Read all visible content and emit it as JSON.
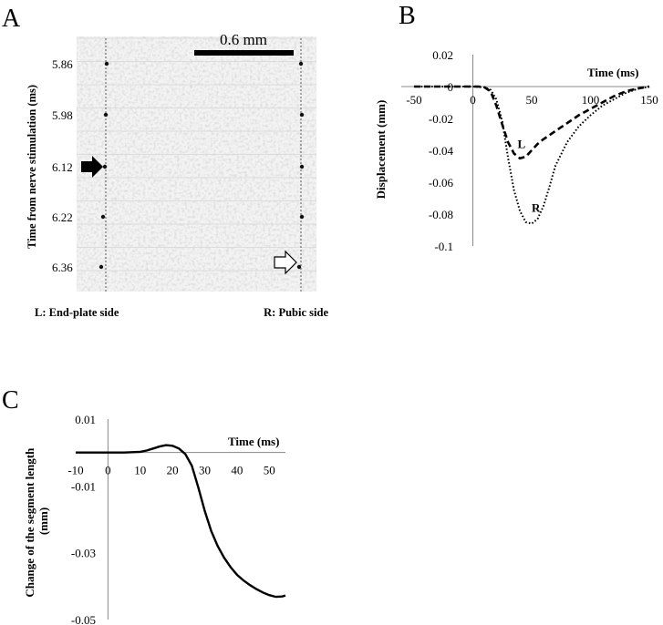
{
  "panels": {
    "a": {
      "letter": "A",
      "scale_bar_label": "0.6 mm",
      "y_title": "Time from nerve stimulation (ms)",
      "time_labels": [
        "5.86",
        "5.98",
        "6.12",
        "6.22",
        "6.36"
      ],
      "left_caption": "L: End-plate side",
      "right_caption": "R: Pubic side",
      "solid_arrow_frame": 2,
      "open_arrow_frame": 4
    },
    "b": {
      "letter": "B"
    },
    "c": {
      "letter": "C"
    }
  },
  "chart_data": [
    {
      "panel": "B",
      "type": "line",
      "title": "",
      "xlabel": "Time (ms)",
      "ylabel": "Displacement (mm)",
      "xlim": [
        -50,
        150
      ],
      "ylim": [
        -0.1,
        0.02
      ],
      "xticks": [
        -50,
        0,
        50,
        100,
        150
      ],
      "yticks": [
        0.02,
        0,
        -0.02,
        -0.04,
        -0.06,
        -0.08,
        -0.1
      ],
      "xtick_labels": [
        "-50",
        "0",
        "50",
        "100",
        "150"
      ],
      "ytick_labels": [
        "0.02",
        "0",
        "-0.02",
        "-0.04",
        "-0.06",
        "-0.08",
        "-0.1"
      ],
      "grid": false,
      "series": [
        {
          "name": "L",
          "style": "dashed",
          "x": [
            -50,
            -20,
            0,
            5,
            10,
            15,
            20,
            25,
            30,
            35,
            40,
            45,
            50,
            55,
            60,
            70,
            80,
            90,
            100,
            110,
            120,
            130,
            140,
            150
          ],
          "y": [
            0,
            0,
            0,
            0,
            -0.0005,
            -0.003,
            -0.012,
            -0.024,
            -0.035,
            -0.042,
            -0.045,
            -0.044,
            -0.04,
            -0.036,
            -0.033,
            -0.028,
            -0.023,
            -0.018,
            -0.014,
            -0.01,
            -0.006,
            -0.003,
            -0.0012,
            0
          ]
        },
        {
          "name": "R",
          "style": "dotted",
          "x": [
            -50,
            -20,
            0,
            10,
            15,
            20,
            25,
            30,
            35,
            40,
            45,
            50,
            55,
            60,
            65,
            70,
            80,
            90,
            100,
            110,
            120,
            130,
            140,
            150
          ],
          "y": [
            0,
            0,
            0,
            -0.0005,
            -0.002,
            -0.008,
            -0.022,
            -0.045,
            -0.065,
            -0.078,
            -0.085,
            -0.086,
            -0.083,
            -0.075,
            -0.063,
            -0.05,
            -0.035,
            -0.025,
            -0.018,
            -0.012,
            -0.008,
            -0.004,
            -0.0015,
            0
          ]
        }
      ],
      "annotations": [
        {
          "text": "L",
          "x": 38,
          "y": -0.035
        },
        {
          "text": "R",
          "x": 50,
          "y": -0.075
        }
      ]
    },
    {
      "panel": "C",
      "type": "line",
      "title": "",
      "xlabel": "Time (ms)",
      "ylabel": "Change of the segment length (mm)",
      "ylabel_lines": [
        "Change of the segment length",
        "(mm)"
      ],
      "xlim": [
        -10,
        55
      ],
      "ylim": [
        -0.05,
        0.01
      ],
      "xticks": [
        -10,
        0,
        10,
        20,
        30,
        40,
        50
      ],
      "yticks": [
        0.01,
        -0.01,
        -0.03,
        -0.05
      ],
      "xtick_labels": [
        "-10",
        "0",
        "10",
        "20",
        "30",
        "40",
        "50"
      ],
      "ytick_labels": [
        "0.01",
        "-0.01",
        "-0.03",
        "-0.05"
      ],
      "grid": false,
      "series": [
        {
          "name": "segment length",
          "style": "solid",
          "x": [
            -10,
            0,
            5,
            10,
            12,
            14,
            16,
            18,
            20,
            22,
            24,
            26,
            28,
            30,
            32,
            34,
            36,
            38,
            40,
            42,
            44,
            46,
            48,
            50,
            52,
            54,
            55
          ],
          "y": [
            0,
            0,
            0,
            0.0002,
            0.0006,
            0.0012,
            0.0018,
            0.0022,
            0.002,
            0.0012,
            -0.0005,
            -0.004,
            -0.0105,
            -0.0175,
            -0.0235,
            -0.028,
            -0.0315,
            -0.0343,
            -0.0366,
            -0.0383,
            -0.0397,
            -0.0409,
            -0.0419,
            -0.0427,
            -0.0432,
            -0.0431,
            -0.0428
          ]
        }
      ]
    }
  ]
}
